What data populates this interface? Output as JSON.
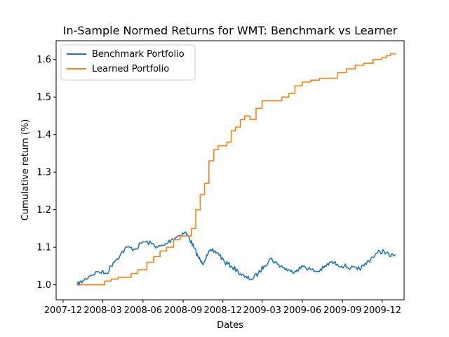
{
  "chart_data": {
    "type": "line",
    "title": "In-Sample Normed Returns for WMT: Benchmark vs Learner",
    "xlabel": "Dates",
    "ylabel": "Cumulative return (%)",
    "xlim": [
      "2007-11-15",
      "2010-01-20"
    ],
    "ylim": [
      0.96,
      1.65
    ],
    "x_ticks": [
      "2007-12",
      "2008-03",
      "2008-06",
      "2008-09",
      "2008-12",
      "2009-03",
      "2009-06",
      "2009-09",
      "2009-12"
    ],
    "x_tick_labels": [
      "2007-12",
      "2008-03",
      "2008-06",
      "2008-09",
      "2008-12",
      "2009-03",
      "2009-06",
      "2009-09",
      "2009-12"
    ],
    "y_ticks": [
      1.0,
      1.1,
      1.2,
      1.3,
      1.4,
      1.5,
      1.6
    ],
    "y_tick_labels": [
      "1.0",
      "1.1",
      "1.2",
      "1.3",
      "1.4",
      "1.5",
      "1.6"
    ],
    "grid": false,
    "legend_position": "top-left",
    "series": [
      {
        "name": "Benchmark Portfolio",
        "color": "#1f77b4",
        "style": "wiggly",
        "x": [
          "2008-01-02",
          "2008-01-15",
          "2008-02-01",
          "2008-02-20",
          "2008-03-10",
          "2008-03-25",
          "2008-04-10",
          "2008-04-25",
          "2008-05-15",
          "2008-06-01",
          "2008-06-20",
          "2008-07-05",
          "2008-07-20",
          "2008-08-05",
          "2008-08-20",
          "2008-09-05",
          "2008-09-15",
          "2008-09-25",
          "2008-10-05",
          "2008-10-15",
          "2008-10-25",
          "2008-11-05",
          "2008-11-20",
          "2008-12-05",
          "2008-12-20",
          "2009-01-05",
          "2009-01-20",
          "2009-02-05",
          "2009-02-20",
          "2009-03-05",
          "2009-03-20",
          "2009-04-05",
          "2009-04-20",
          "2009-05-05",
          "2009-05-20",
          "2009-06-05",
          "2009-06-20",
          "2009-07-05",
          "2009-07-20",
          "2009-08-05",
          "2009-08-20",
          "2009-09-05",
          "2009-09-20",
          "2009-10-05",
          "2009-10-20",
          "2009-11-05",
          "2009-11-20",
          "2009-12-05",
          "2009-12-20",
          "2009-12-31"
        ],
        "y": [
          1.0,
          1.01,
          1.025,
          1.035,
          1.03,
          1.06,
          1.08,
          1.1,
          1.095,
          1.115,
          1.11,
          1.1,
          1.105,
          1.12,
          1.13,
          1.14,
          1.125,
          1.1,
          1.075,
          1.055,
          1.08,
          1.09,
          1.085,
          1.06,
          1.05,
          1.035,
          1.02,
          1.015,
          1.03,
          1.05,
          1.07,
          1.055,
          1.045,
          1.035,
          1.04,
          1.05,
          1.04,
          1.035,
          1.045,
          1.06,
          1.055,
          1.05,
          1.045,
          1.04,
          1.05,
          1.07,
          1.085,
          1.09,
          1.075,
          1.08
        ]
      },
      {
        "name": "Learned Portfolio",
        "color": "#ff7f0e",
        "style": "step",
        "x": [
          "2008-01-02",
          "2008-01-20",
          "2008-02-20",
          "2008-03-05",
          "2008-03-20",
          "2008-04-05",
          "2008-04-25",
          "2008-05-05",
          "2008-05-20",
          "2008-06-10",
          "2008-06-25",
          "2008-07-10",
          "2008-07-25",
          "2008-08-10",
          "2008-08-25",
          "2008-09-10",
          "2008-09-20",
          "2008-09-30",
          "2008-10-10",
          "2008-10-20",
          "2008-10-30",
          "2008-11-10",
          "2008-11-20",
          "2008-11-30",
          "2008-12-10",
          "2008-12-20",
          "2008-12-30",
          "2009-01-10",
          "2009-01-20",
          "2009-02-01",
          "2009-02-15",
          "2009-03-01",
          "2009-03-15",
          "2009-04-01",
          "2009-04-15",
          "2009-05-01",
          "2009-05-15",
          "2009-06-01",
          "2009-06-20",
          "2009-07-10",
          "2009-07-30",
          "2009-08-20",
          "2009-09-10",
          "2009-09-30",
          "2009-10-20",
          "2009-11-10",
          "2009-11-30",
          "2009-12-10",
          "2009-12-20",
          "2009-12-31"
        ],
        "y": [
          1.0,
          1.0,
          1.0,
          1.01,
          1.015,
          1.02,
          1.02,
          1.03,
          1.04,
          1.06,
          1.075,
          1.09,
          1.1,
          1.12,
          1.13,
          1.13,
          1.15,
          1.2,
          1.24,
          1.27,
          1.33,
          1.36,
          1.37,
          1.37,
          1.38,
          1.41,
          1.42,
          1.44,
          1.45,
          1.44,
          1.47,
          1.49,
          1.49,
          1.49,
          1.5,
          1.51,
          1.53,
          1.54,
          1.545,
          1.55,
          1.55,
          1.565,
          1.575,
          1.585,
          1.59,
          1.6,
          1.605,
          1.61,
          1.615,
          1.613
        ]
      }
    ]
  }
}
